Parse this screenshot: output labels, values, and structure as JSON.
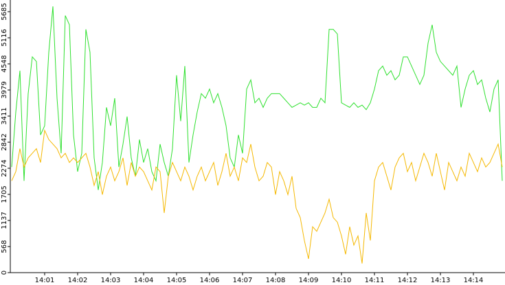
{
  "chart_data": {
    "type": "line",
    "categories": [
      null,
      null,
      null,
      null,
      null,
      null,
      null,
      null,
      "14:01",
      null,
      null,
      null,
      null,
      null,
      null,
      null,
      "14:02",
      null,
      null,
      null,
      null,
      null,
      null,
      null,
      "14:03",
      null,
      null,
      null,
      null,
      null,
      null,
      null,
      "14:04",
      null,
      null,
      null,
      null,
      null,
      null,
      null,
      "14:05",
      null,
      null,
      null,
      null,
      null,
      null,
      null,
      "14:06",
      null,
      null,
      null,
      null,
      null,
      null,
      null,
      "14:07",
      null,
      null,
      null,
      null,
      null,
      null,
      null,
      "14:08",
      null,
      null,
      null,
      null,
      null,
      null,
      null,
      "14:09",
      null,
      null,
      null,
      null,
      null,
      null,
      null,
      "14:10",
      null,
      null,
      null,
      null,
      null,
      null,
      null,
      "14:11",
      null,
      null,
      null,
      null,
      null,
      null,
      null,
      "14:12",
      null,
      null,
      null,
      null,
      null,
      null,
      null,
      "14:13",
      null,
      null,
      null,
      null,
      null,
      null,
      null,
      "14:14",
      null,
      null,
      null,
      null,
      null,
      null,
      null
    ],
    "series": [
      {
        "color": "#2ee02e",
        "values": [
          2300,
          3500,
          4400,
          2000,
          3900,
          4700,
          4600,
          3000,
          3200,
          4800,
          5800,
          3800,
          2600,
          5600,
          5400,
          3000,
          2200,
          2600,
          5300,
          4800,
          2500,
          1800,
          2400,
          3600,
          3200,
          3800,
          2300,
          2800,
          3400,
          2500,
          2100,
          2900,
          2400,
          2700,
          2200,
          2000,
          2800,
          2400,
          2100,
          2700,
          4300,
          3300,
          4500,
          2400,
          3000,
          3500,
          3900,
          3800,
          4000,
          3700,
          3900,
          3600,
          3200,
          2500,
          2300,
          3000,
          2600,
          4000,
          4200,
          3700,
          3800,
          3600,
          3800,
          3900,
          3900,
          3900,
          3800,
          3700,
          3600,
          3650,
          3700,
          3650,
          3700,
          3600,
          3600,
          3800,
          3700,
          5300,
          5300,
          5200,
          3700,
          3650,
          3600,
          3700,
          3600,
          3650,
          3550,
          3700,
          4000,
          4400,
          4500,
          4300,
          4400,
          4200,
          4300,
          4700,
          4700,
          4500,
          4300,
          4100,
          4300,
          5000,
          5400,
          4800,
          4600,
          4500,
          4400,
          4300,
          4500,
          3600,
          4000,
          4300,
          4400,
          4100,
          4200,
          3800,
          3500,
          4000,
          4200,
          2000
        ]
      },
      {
        "color": "#f5b800",
        "values": [
          2000,
          2200,
          2700,
          2300,
          2500,
          2600,
          2700,
          2400,
          3100,
          2900,
          2800,
          2700,
          2500,
          2600,
          2400,
          2500,
          2400,
          2500,
          2600,
          2300,
          1900,
          2200,
          1700,
          2100,
          2300,
          2000,
          2200,
          2500,
          1900,
          2400,
          2100,
          2300,
          2200,
          2000,
          1800,
          2300,
          2200,
          1300,
          2100,
          2400,
          2200,
          2000,
          2300,
          2100,
          1800,
          2100,
          2300,
          2000,
          2200,
          2400,
          1900,
          2200,
          2600,
          2100,
          2300,
          2000,
          2500,
          2400,
          2800,
          2300,
          2000,
          2100,
          2400,
          2300,
          1700,
          2200,
          2000,
          1700,
          2100,
          1400,
          1200,
          700,
          300,
          1000,
          900,
          1100,
          1300,
          1600,
          1200,
          1100,
          800,
          400,
          1000,
          600,
          800,
          200,
          1300,
          700,
          2000,
          2300,
          2400,
          2100,
          1800,
          2300,
          2500,
          2600,
          2200,
          2400,
          2000,
          2300,
          2600,
          2400,
          2100,
          2600,
          2200,
          1800,
          2400,
          2200,
          2000,
          2300,
          2100,
          2600,
          2400,
          2200,
          2500,
          2300,
          2400,
          2600,
          2800,
          2300
        ]
      }
    ],
    "ylim": [
      0,
      5685
    ],
    "yticks": [
      0,
      568,
      1137,
      1705,
      2274,
      2842,
      3411,
      3979,
      4548,
      5116,
      5685
    ]
  }
}
